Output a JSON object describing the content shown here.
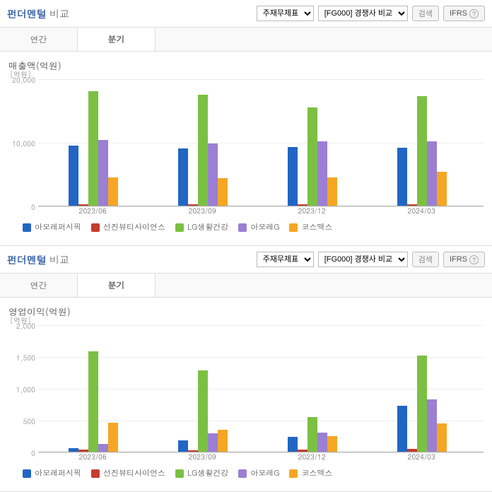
{
  "panels": [
    {
      "title_main": "펀더멘털",
      "title_sub": "비교",
      "select1": "주재무제표",
      "select2": "[FG000] 경쟁사 비교",
      "btn_search": "검색",
      "btn_ifrs": "IFRS",
      "tabs": {
        "annual": "연간",
        "quarterly": "분기"
      },
      "chart": {
        "title": "매출액(억원)",
        "y_unit": "[억원]",
        "ymax": 20000,
        "yticks": [
          0,
          10000,
          20000
        ],
        "ytick_labels": [
          "0",
          "10,000",
          "20,000"
        ],
        "categories": [
          "2023/06",
          "2023/09",
          "2023/12",
          "2024/03"
        ],
        "series": [
          {
            "name": "아모레퍼시픽",
            "color": "#2166c4",
            "values": [
              9400,
              9000,
              9200,
              9100
            ]
          },
          {
            "name": "선진뷰티사이언스",
            "color": "#c63a2f",
            "values": [
              200,
              190,
              180,
              200
            ]
          },
          {
            "name": "LG생활건강",
            "color": "#7bc043",
            "values": [
              18000,
              17500,
              15500,
              17200
            ]
          },
          {
            "name": "아모레G",
            "color": "#9b7fd4",
            "values": [
              10300,
              9800,
              10100,
              10100
            ]
          },
          {
            "name": "코스맥스",
            "color": "#f5a623",
            "values": [
              4400,
              4300,
              4500,
              5300
            ]
          }
        ]
      }
    },
    {
      "title_main": "펀더멘털",
      "title_sub": "비교",
      "select1": "주재무제표",
      "select2": "[FG000] 경쟁사 비교",
      "btn_search": "검색",
      "btn_ifrs": "IFRS",
      "tabs": {
        "annual": "연간",
        "quarterly": "분기"
      },
      "chart": {
        "title": "영업이익(억원)",
        "y_unit": "[억원]",
        "ymax": 2000,
        "yticks": [
          0,
          500,
          1000,
          1500,
          2000
        ],
        "ytick_labels": [
          "0",
          "500",
          "1,000",
          "1,500",
          "2,000"
        ],
        "categories": [
          "2023/06",
          "2023/09",
          "2023/12",
          "2024/03"
        ],
        "series": [
          {
            "name": "아모레퍼시픽",
            "color": "#2166c4",
            "values": [
              60,
              180,
              230,
              720
            ]
          },
          {
            "name": "선진뷰티사이언스",
            "color": "#c63a2f",
            "values": [
              30,
              20,
              30,
              40
            ]
          },
          {
            "name": "LG생활건강",
            "color": "#7bc043",
            "values": [
              1580,
              1280,
              550,
              1510
            ]
          },
          {
            "name": "아모레G",
            "color": "#9b7fd4",
            "values": [
              120,
              290,
              300,
              820
            ]
          },
          {
            "name": "코스맥스",
            "color": "#f5a623",
            "values": [
              460,
              340,
              240,
              450
            ]
          }
        ]
      }
    }
  ]
}
